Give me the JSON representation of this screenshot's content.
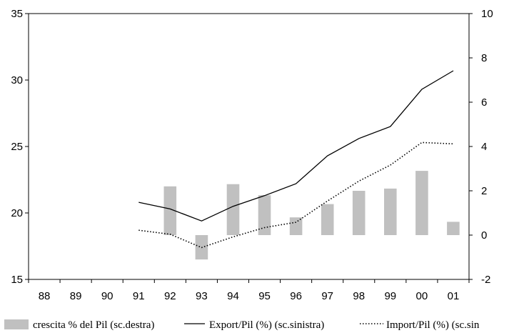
{
  "chart_data": {
    "type": "bar",
    "categories": [
      "88",
      "89",
      "90",
      "91",
      "92",
      "93",
      "94",
      "95",
      "96",
      "97",
      "98",
      "99",
      "00",
      "01"
    ],
    "left_axis": {
      "min": 15,
      "max": 35,
      "ticks": [
        15,
        20,
        25,
        30,
        35
      ]
    },
    "right_axis": {
      "min": -2,
      "max": 10,
      "ticks": [
        -2,
        0,
        2,
        4,
        6,
        8,
        10
      ]
    },
    "series": [
      {
        "name": "crescita % del Pil (sc.destra)",
        "type": "bar",
        "axis": "right",
        "color": "#c0c0c0",
        "values": [
          null,
          null,
          null,
          null,
          2.2,
          -1.1,
          2.3,
          1.8,
          0.8,
          1.4,
          2.0,
          2.1,
          2.9,
          0.6
        ]
      },
      {
        "name": "Export/Pil (%) (sc.sinistra)",
        "type": "line",
        "axis": "left",
        "style": "solid",
        "color": "#000000",
        "values": [
          null,
          null,
          null,
          20.8,
          20.3,
          19.4,
          20.5,
          21.3,
          22.2,
          24.3,
          25.6,
          26.5,
          29.3,
          30.7
        ]
      },
      {
        "name": "Import/Pil (%) (sc.sinistra)",
        "type": "line",
        "axis": "left",
        "style": "dotted",
        "color": "#000000",
        "values": [
          null,
          null,
          null,
          18.7,
          18.4,
          17.4,
          18.2,
          18.9,
          19.3,
          20.9,
          22.4,
          23.6,
          25.3,
          25.2
        ]
      }
    ],
    "legend": {
      "position": "bottom",
      "labels": [
        "crescita % del Pil (sc.destra)",
        "Export/Pil (%) (sc.sinistra)",
        "Import/Pil (%) (sc.sin"
      ]
    }
  }
}
